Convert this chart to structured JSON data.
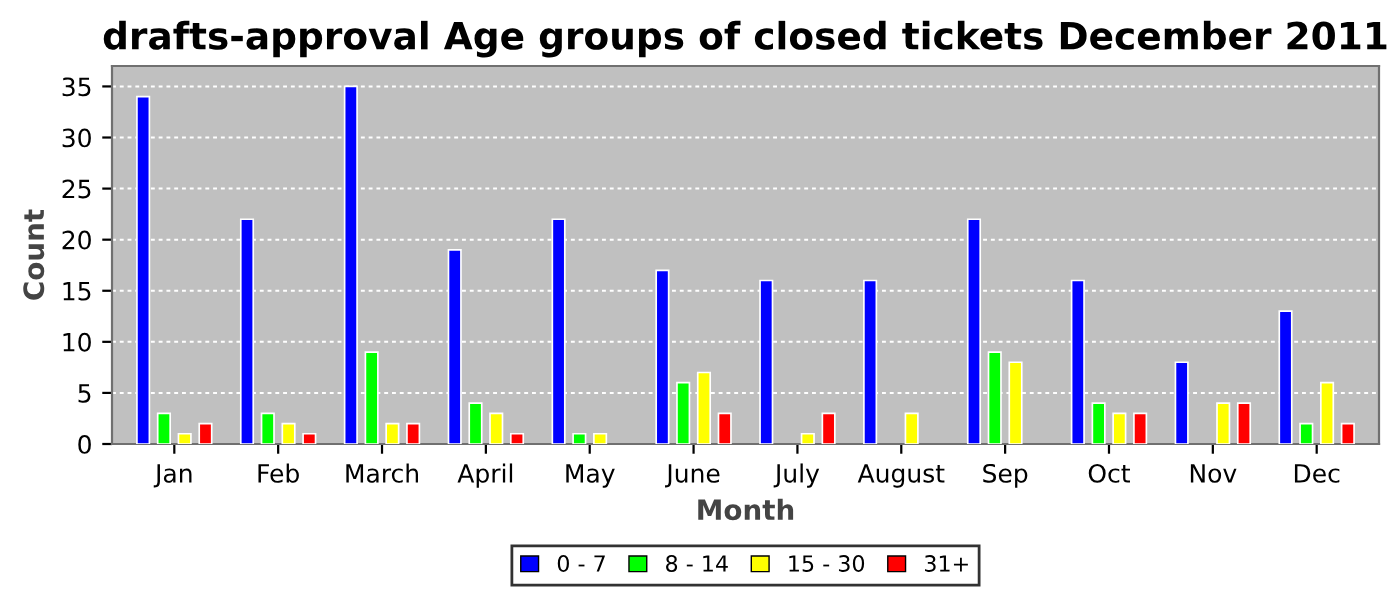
{
  "chart_data": {
    "type": "bar",
    "title": "drafts-approval Age groups of closed tickets December 2011",
    "xlabel": "Month",
    "ylabel": "Count",
    "categories": [
      "Jan",
      "Feb",
      "March",
      "April",
      "May",
      "June",
      "July",
      "August",
      "Sep",
      "Oct",
      "Nov",
      "Dec"
    ],
    "series": [
      {
        "name": "0 - 7",
        "color": "#0000ff",
        "values": [
          34,
          22,
          35,
          19,
          22,
          17,
          16,
          16,
          22,
          16,
          8,
          13
        ]
      },
      {
        "name": "8 - 14",
        "color": "#00ff00",
        "values": [
          3,
          3,
          9,
          4,
          1,
          6,
          null,
          null,
          9,
          4,
          null,
          2
        ]
      },
      {
        "name": "15 - 30",
        "color": "#ffff00",
        "values": [
          1,
          2,
          2,
          3,
          1,
          7,
          1,
          3,
          8,
          3,
          4,
          6
        ]
      },
      {
        "name": "31+",
        "color": "#ff0000",
        "values": [
          2,
          1,
          2,
          1,
          null,
          3,
          3,
          null,
          null,
          3,
          4,
          2
        ]
      }
    ],
    "ylim": [
      0,
      37
    ],
    "yticks": [
      0,
      5,
      10,
      15,
      20,
      25,
      30,
      35
    ],
    "grid": "y",
    "legend": "bottom"
  }
}
